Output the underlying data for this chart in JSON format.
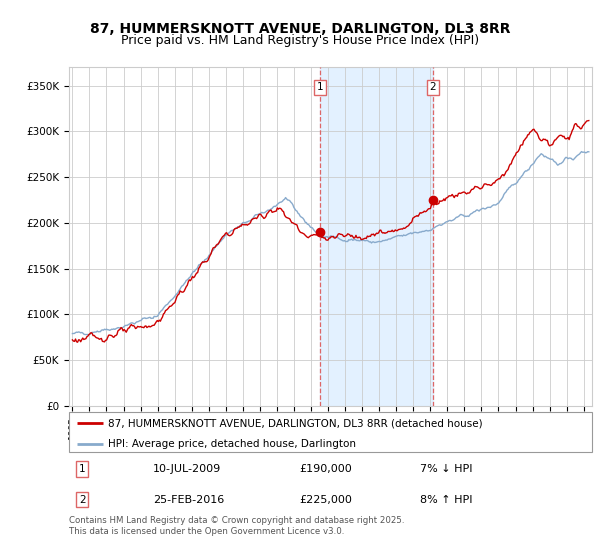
{
  "title_line1": "87, HUMMERSKNOTT AVENUE, DARLINGTON, DL3 8RR",
  "title_line2": "Price paid vs. HM Land Registry's House Price Index (HPI)",
  "legend_label_red": "87, HUMMERSKNOTT AVENUE, DARLINGTON, DL3 8RR (detached house)",
  "legend_label_blue": "HPI: Average price, detached house, Darlington",
  "annotation1_label": "1",
  "annotation1_date": "10-JUL-2009",
  "annotation1_price": "£190,000",
  "annotation1_hpi": "7% ↓ HPI",
  "annotation2_label": "2",
  "annotation2_date": "25-FEB-2016",
  "annotation2_price": "£225,000",
  "annotation2_hpi": "8% ↑ HPI",
  "sale1_year": 2009.52,
  "sale1_value": 190000,
  "sale2_year": 2016.15,
  "sale2_value": 225000,
  "ylim_min": 0,
  "ylim_max": 370000,
  "xlim_min": 1994.8,
  "xlim_max": 2025.5,
  "background_color": "#ffffff",
  "grid_color": "#cccccc",
  "red_line_color": "#cc0000",
  "blue_line_color": "#88aacc",
  "shade_color": "#ddeeff",
  "vline_color": "#dd6666",
  "footer_text": "Contains HM Land Registry data © Crown copyright and database right 2025.\nThis data is licensed under the Open Government Licence v3.0.",
  "title_fontsize": 10,
  "subtitle_fontsize": 9
}
